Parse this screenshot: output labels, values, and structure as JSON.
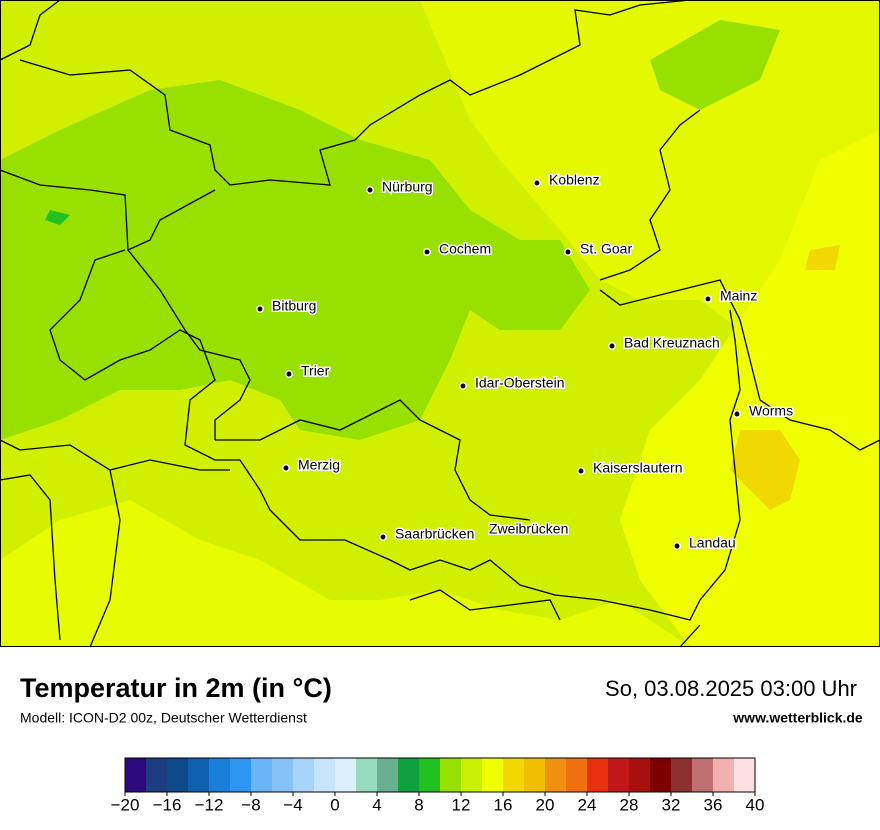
{
  "header": {
    "title": "Temperatur in 2m (in °C)",
    "subtitle": "Modell: ICON-D2 00z, Deutscher Wetterdienst",
    "valid_time": "So, 03.08.2025 03:00 Uhr",
    "website": "www.wetterblick.de"
  },
  "cities": [
    "Nürburg",
    "Koblenz",
    "Cochem",
    "St. Goar",
    "Mainz",
    "Bitburg",
    "Bad Kreuznach",
    "Trier",
    "Idar-Oberstein",
    "Worms",
    "Merzig",
    "Kaiserslautern",
    "Saarbrücken",
    "Zweibrücken",
    "Landau"
  ],
  "colorbar": {
    "lim": [
      -20,
      40
    ],
    "colors": [
      "#2c0a7e",
      "#1c3d80",
      "#0c4a8a",
      "#1060b0",
      "#1a7fd8",
      "#2c96f0",
      "#6ab4f8",
      "#86c2f8",
      "#a8d4fa",
      "#c8e4fa",
      "#dceefa",
      "#98dcc0",
      "#6ab090",
      "#10a040",
      "#22c020",
      "#98e000",
      "#c8f000",
      "#f0ff00",
      "#f0d800",
      "#f0c000",
      "#f09010",
      "#f07010",
      "#e83010",
      "#c01818",
      "#a81010",
      "#7c0000",
      "#8c3030",
      "#c07070",
      "#f0b0b0",
      "#fde0e0"
    ],
    "ticks": [
      {
        "value": -20,
        "label": "−20"
      },
      {
        "value": -16,
        "label": "−16"
      },
      {
        "value": -12,
        "label": "−12"
      },
      {
        "value": -8,
        "label": "−8"
      },
      {
        "value": -4,
        "label": "−4"
      },
      0,
      4,
      8,
      12,
      16,
      20,
      24,
      28,
      32,
      36,
      40
    ]
  }
}
